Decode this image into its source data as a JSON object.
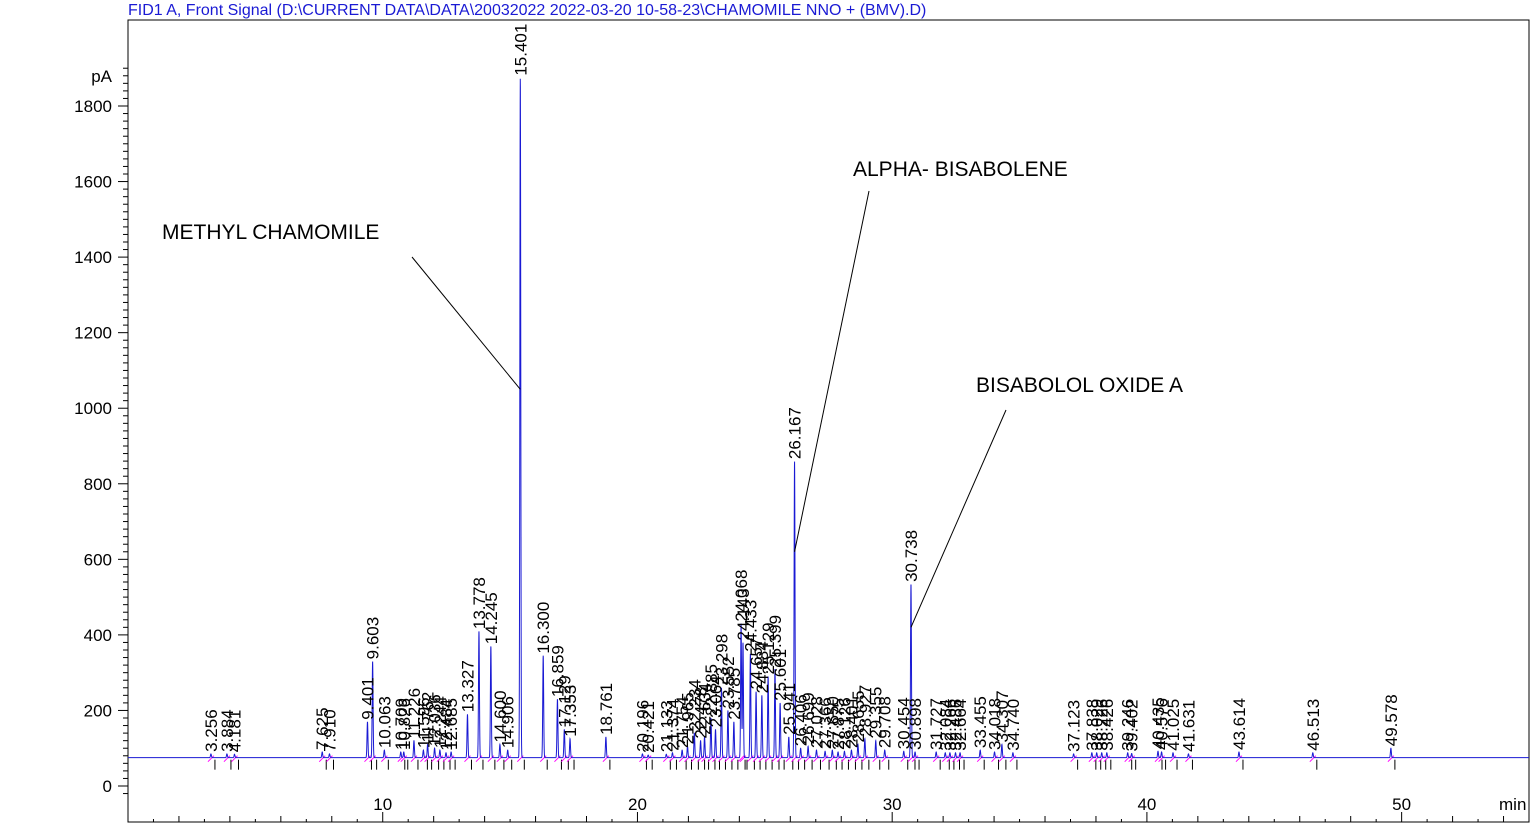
{
  "chart_data": {
    "type": "line",
    "title": "FID1 A, Front Signal (D:\\CURRENT DATA\\DATA\\20032022 2022-03-20 10-58-23\\CHAMOMILE NNO + (BMV).D)",
    "ylabel": "pA",
    "xlabel": "min",
    "xlim": [
      0,
      55
    ],
    "ylim": [
      -30,
      1950
    ],
    "baseline": 75,
    "x_ticks": [
      10,
      20,
      30,
      40,
      50
    ],
    "y_ticks": [
      0,
      200,
      400,
      600,
      800,
      1000,
      1200,
      1400,
      1600,
      1800
    ],
    "colors": {
      "signal": "#1a1ad4",
      "integration": "#ff00ff",
      "title": "#1a1ad4"
    },
    "peaks": [
      {
        "rt": "3.256",
        "x": 3.256,
        "y": 85
      },
      {
        "rt": "3.884",
        "x": 3.884,
        "y": 85
      },
      {
        "rt": "4.181",
        "x": 4.181,
        "y": 84
      },
      {
        "rt": "7.625",
        "x": 7.625,
        "y": 90
      },
      {
        "rt": "7.910",
        "x": 7.91,
        "y": 85
      },
      {
        "rt": "9.401",
        "x": 9.401,
        "y": 170
      },
      {
        "rt": "9.603",
        "x": 9.603,
        "y": 330
      },
      {
        "rt": "10.063",
        "x": 10.063,
        "y": 95
      },
      {
        "rt": "10.709",
        "x": 10.709,
        "y": 90
      },
      {
        "rt": "10.826",
        "x": 10.826,
        "y": 90
      },
      {
        "rt": "11.226",
        "x": 11.226,
        "y": 120
      },
      {
        "rt": "11.596",
        "x": 11.596,
        "y": 95
      },
      {
        "rt": "11.762",
        "x": 11.762,
        "y": 110
      },
      {
        "rt": "12.036",
        "x": 12.036,
        "y": 100
      },
      {
        "rt": "12.244",
        "x": 12.244,
        "y": 95
      },
      {
        "rt": "12.484",
        "x": 12.484,
        "y": 88
      },
      {
        "rt": "12.685",
        "x": 12.685,
        "y": 90
      },
      {
        "rt": "13.327",
        "x": 13.327,
        "y": 190
      },
      {
        "rt": "13.778",
        "x": 13.778,
        "y": 410
      },
      {
        "rt": "14.245",
        "x": 14.245,
        "y": 370
      },
      {
        "rt": "14.600",
        "x": 14.6,
        "y": 110
      },
      {
        "rt": "14.906",
        "x": 14.906,
        "y": 95
      },
      {
        "rt": "15.401",
        "x": 15.401,
        "y": 1875
      },
      {
        "rt": "16.300",
        "x": 16.3,
        "y": 345
      },
      {
        "rt": "16.859",
        "x": 16.859,
        "y": 230
      },
      {
        "rt": "17.129",
        "x": 17.129,
        "y": 150
      },
      {
        "rt": "17.353",
        "x": 17.353,
        "y": 125
      },
      {
        "rt": "18.761",
        "x": 18.761,
        "y": 130
      },
      {
        "rt": "20.196",
        "x": 20.196,
        "y": 85
      },
      {
        "rt": "20.421",
        "x": 20.421,
        "y": 82
      },
      {
        "rt": "21.133",
        "x": 21.133,
        "y": 84
      },
      {
        "rt": "21.374",
        "x": 21.374,
        "y": 88
      },
      {
        "rt": "21.754",
        "x": 21.754,
        "y": 95
      },
      {
        "rt": "21.965",
        "x": 21.965,
        "y": 105
      },
      {
        "rt": "22.234",
        "x": 22.234,
        "y": 140
      },
      {
        "rt": "22.478",
        "x": 22.478,
        "y": 120
      },
      {
        "rt": "22.634",
        "x": 22.634,
        "y": 130
      },
      {
        "rt": "22.885",
        "x": 22.885,
        "y": 180
      },
      {
        "rt": "23.064",
        "x": 23.064,
        "y": 150
      },
      {
        "rt": "23.298",
        "x": 23.298,
        "y": 260
      },
      {
        "rt": "23.552",
        "x": 23.552,
        "y": 200
      },
      {
        "rt": "23.785",
        "x": 23.785,
        "y": 170
      },
      {
        "rt": "24.068",
        "x": 24.068,
        "y": 430
      },
      {
        "rt": "24.143",
        "x": 24.143,
        "y": 380
      },
      {
        "rt": "24.433",
        "x": 24.433,
        "y": 350
      },
      {
        "rt": "24.657",
        "x": 24.657,
        "y": 250
      },
      {
        "rt": "24.884",
        "x": 24.884,
        "y": 240
      },
      {
        "rt": "25.129",
        "x": 25.129,
        "y": 290
      },
      {
        "rt": "25.399",
        "x": 25.399,
        "y": 310
      },
      {
        "rt": "25.601",
        "x": 25.601,
        "y": 220
      },
      {
        "rt": "25.941",
        "x": 25.941,
        "y": 130
      },
      {
        "rt": "26.167",
        "x": 26.167,
        "y": 860
      },
      {
        "rt": "26.406",
        "x": 26.406,
        "y": 100
      },
      {
        "rt": "26.699",
        "x": 26.699,
        "y": 105
      },
      {
        "rt": "27.028",
        "x": 27.028,
        "y": 95
      },
      {
        "rt": "27.366",
        "x": 27.366,
        "y": 92
      },
      {
        "rt": "27.650",
        "x": 27.65,
        "y": 95
      },
      {
        "rt": "27.875",
        "x": 27.875,
        "y": 90
      },
      {
        "rt": "28.126",
        "x": 28.126,
        "y": 92
      },
      {
        "rt": "28.401",
        "x": 28.401,
        "y": 95
      },
      {
        "rt": "28.655",
        "x": 28.655,
        "y": 110
      },
      {
        "rt": "28.927",
        "x": 28.927,
        "y": 125
      },
      {
        "rt": "29.355",
        "x": 29.355,
        "y": 120
      },
      {
        "rt": "29.708",
        "x": 29.708,
        "y": 95
      },
      {
        "rt": "30.454",
        "x": 30.454,
        "y": 92
      },
      {
        "rt": "30.738",
        "x": 30.738,
        "y": 535
      },
      {
        "rt": "30.898",
        "x": 30.898,
        "y": 90
      },
      {
        "rt": "31.727",
        "x": 31.727,
        "y": 90
      },
      {
        "rt": "32.084",
        "x": 32.084,
        "y": 88
      },
      {
        "rt": "32.266",
        "x": 32.266,
        "y": 88
      },
      {
        "rt": "32.486",
        "x": 32.486,
        "y": 88
      },
      {
        "rt": "32.664",
        "x": 32.664,
        "y": 88
      },
      {
        "rt": "33.455",
        "x": 33.455,
        "y": 95
      },
      {
        "rt": "34.018",
        "x": 34.018,
        "y": 90
      },
      {
        "rt": "34.307",
        "x": 34.307,
        "y": 110
      },
      {
        "rt": "34.740",
        "x": 34.74,
        "y": 88
      },
      {
        "rt": "37.123",
        "x": 37.123,
        "y": 85
      },
      {
        "rt": "37.838",
        "x": 37.838,
        "y": 88
      },
      {
        "rt": "38.029",
        "x": 38.029,
        "y": 88
      },
      {
        "rt": "38.226",
        "x": 38.226,
        "y": 88
      },
      {
        "rt": "38.426",
        "x": 38.426,
        "y": 88
      },
      {
        "rt": "39.246",
        "x": 39.246,
        "y": 88
      },
      {
        "rt": "39.402",
        "x": 39.402,
        "y": 86
      },
      {
        "rt": "40.435",
        "x": 40.435,
        "y": 92
      },
      {
        "rt": "40.576",
        "x": 40.576,
        "y": 90
      },
      {
        "rt": "41.025",
        "x": 41.025,
        "y": 88
      },
      {
        "rt": "41.631",
        "x": 41.631,
        "y": 85
      },
      {
        "rt": "43.614",
        "x": 43.614,
        "y": 90
      },
      {
        "rt": "46.513",
        "x": 46.513,
        "y": 88
      },
      {
        "rt": "49.578",
        "x": 49.578,
        "y": 100
      }
    ],
    "annotations": [
      {
        "text": "METHYL CHAMOMILE",
        "peak_x": 15.401,
        "peak_y": 1050
      },
      {
        "text": "ALPHA- BISABOLENE",
        "peak_x": 26.167,
        "peak_y": 620
      },
      {
        "text": "BISABOLOL OXIDE A",
        "peak_x": 30.738,
        "peak_y": 420
      }
    ]
  }
}
